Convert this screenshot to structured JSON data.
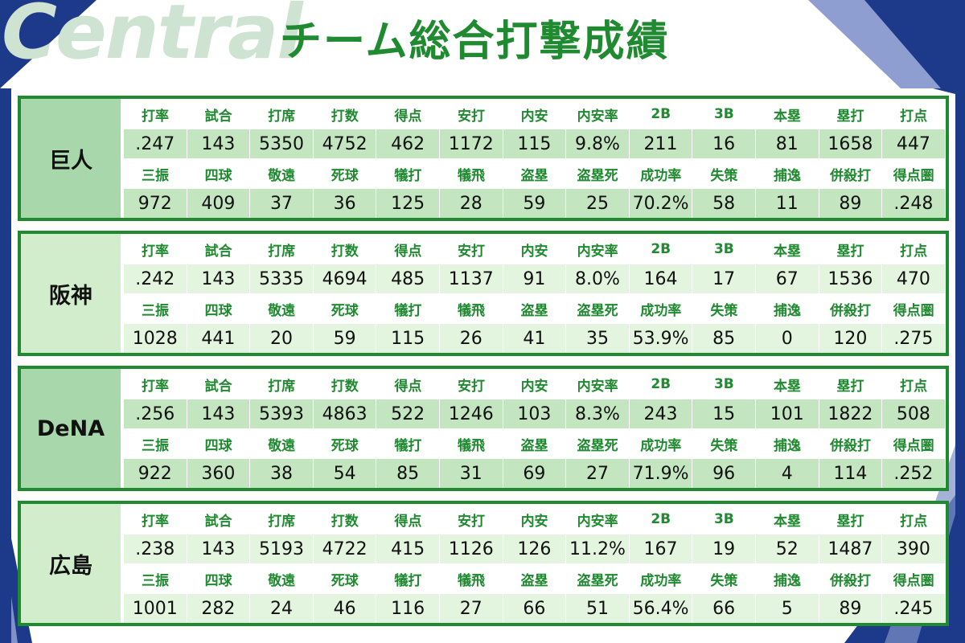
{
  "header": {
    "watermark": "Central",
    "title": "チーム総合打撃成績"
  },
  "colors": {
    "accent_green": "#1f8a2f",
    "navy": "#1d3a8a",
    "cell_dark": "#c3e6c0",
    "cell_light": "#e3f4df",
    "team_cell_dark": "#a8d7ab",
    "team_cell_light": "#d2edcc"
  },
  "labels_row1": [
    "打率",
    "試合",
    "打席",
    "打数",
    "得点",
    "安打",
    "内安",
    "内安率",
    "2B",
    "3B",
    "本塁",
    "塁打",
    "打点"
  ],
  "labels_row2": [
    "三振",
    "四球",
    "敬遠",
    "死球",
    "犠打",
    "犠飛",
    "盗塁",
    "盗塁死",
    "成功率",
    "失策",
    "捕逸",
    "併殺打",
    "得点圏"
  ],
  "teams": [
    {
      "name": "巨人",
      "row1": [
        ".247",
        "143",
        "5350",
        "4752",
        "462",
        "1172",
        "115",
        "9.8%",
        "211",
        "16",
        "81",
        "1658",
        "447"
      ],
      "row2": [
        "972",
        "409",
        "37",
        "36",
        "125",
        "28",
        "59",
        "25",
        "70.2%",
        "58",
        "11",
        "89",
        ".248"
      ]
    },
    {
      "name": "阪神",
      "row1": [
        ".242",
        "143",
        "5335",
        "4694",
        "485",
        "1137",
        "91",
        "8.0%",
        "164",
        "17",
        "67",
        "1536",
        "470"
      ],
      "row2": [
        "1028",
        "441",
        "20",
        "59",
        "115",
        "26",
        "41",
        "35",
        "53.9%",
        "85",
        "0",
        "120",
        ".275"
      ]
    },
    {
      "name": "DeNA",
      "row1": [
        ".256",
        "143",
        "5393",
        "4863",
        "522",
        "1246",
        "103",
        "8.3%",
        "243",
        "15",
        "101",
        "1822",
        "508"
      ],
      "row2": [
        "922",
        "360",
        "38",
        "54",
        "85",
        "31",
        "69",
        "27",
        "71.9%",
        "96",
        "4",
        "114",
        ".252"
      ]
    },
    {
      "name": "広島",
      "row1": [
        ".238",
        "143",
        "5193",
        "4722",
        "415",
        "1126",
        "126",
        "11.2%",
        "167",
        "19",
        "52",
        "1487",
        "390"
      ],
      "row2": [
        "1001",
        "282",
        "24",
        "46",
        "116",
        "27",
        "66",
        "51",
        "56.4%",
        "66",
        "5",
        "89",
        ".245"
      ]
    }
  ]
}
